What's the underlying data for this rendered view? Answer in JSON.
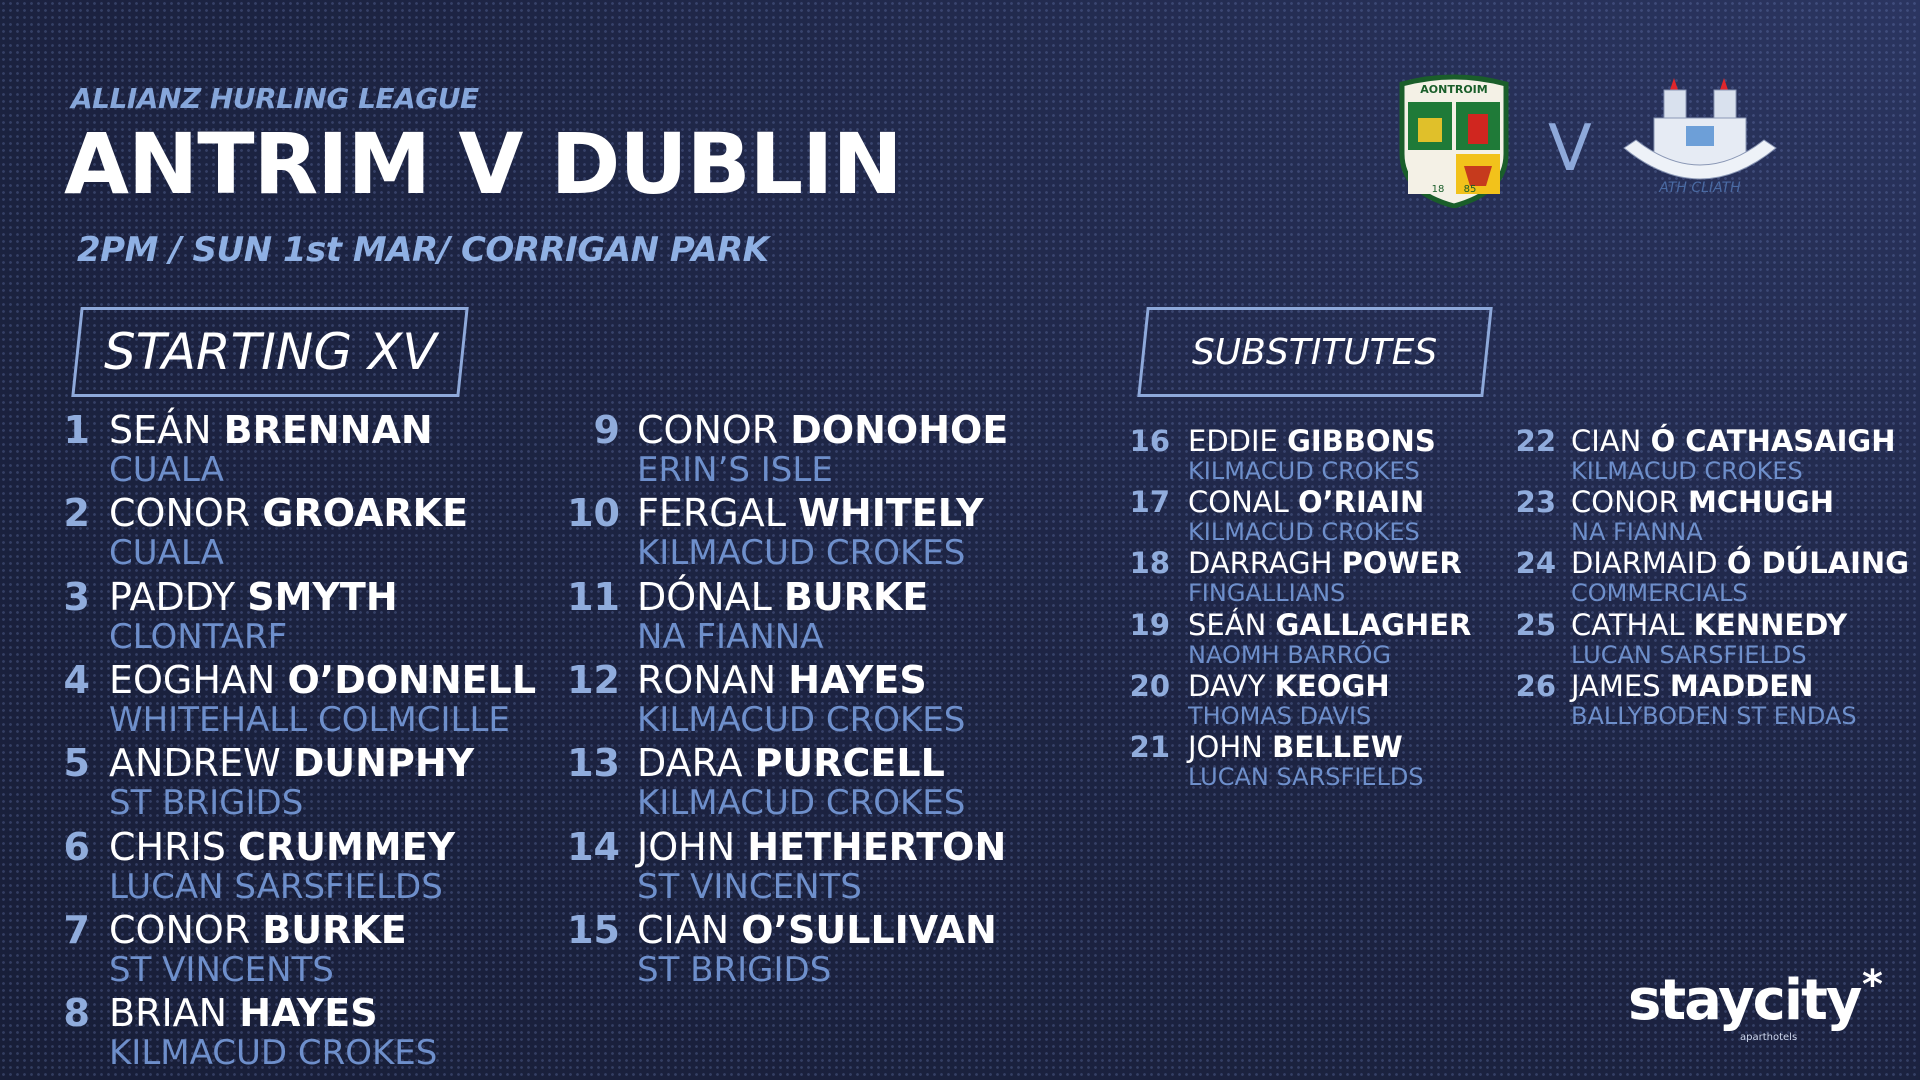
{
  "header": {
    "competition": "ALLIANZ HURLING LEAGUE",
    "title": "ANTRIM V DUBLIN",
    "details": "2PM / SUN 1st MAR/ CORRIGAN PARK"
  },
  "crests": {
    "home_label": "AONTROIM",
    "home_year_left": "18",
    "home_year_right": "85",
    "versus": "V",
    "away_label": "ATH CLIATH"
  },
  "starting": {
    "heading": "STARTING XV",
    "players": [
      {
        "number": 1,
        "first": "SEÁN",
        "last": "BRENNAN",
        "club": "CUALA"
      },
      {
        "number": 2,
        "first": "CONOR",
        "last": "GROARKE",
        "club": "CUALA"
      },
      {
        "number": 3,
        "first": "PADDY",
        "last": "SMYTH",
        "club": "CLONTARF"
      },
      {
        "number": 4,
        "first": "EOGHAN",
        "last": "O’DONNELL",
        "club": "WHITEHALL COLMCILLE"
      },
      {
        "number": 5,
        "first": "ANDREW",
        "last": "DUNPHY",
        "club": "ST BRIGIDS"
      },
      {
        "number": 6,
        "first": "CHRIS",
        "last": "CRUMMEY",
        "club": "LUCAN SARSFIELDS"
      },
      {
        "number": 7,
        "first": "CONOR",
        "last": "BURKE",
        "club": "ST VINCENTS"
      },
      {
        "number": 8,
        "first": "BRIAN",
        "last": "HAYES",
        "club": "KILMACUD CROKES"
      },
      {
        "number": 9,
        "first": "CONOR",
        "last": "DONOHOE",
        "club": "ERIN’S ISLE"
      },
      {
        "number": 10,
        "first": "FERGAL",
        "last": "WHITELY",
        "club": "KILMACUD CROKES"
      },
      {
        "number": 11,
        "first": "DÓNAL",
        "last": "BURKE",
        "club": "NA FIANNA"
      },
      {
        "number": 12,
        "first": "RONAN",
        "last": "HAYES",
        "club": "KILMACUD CROKES"
      },
      {
        "number": 13,
        "first": "DARA",
        "last": "PURCELL",
        "club": "KILMACUD CROKES"
      },
      {
        "number": 14,
        "first": "JOHN",
        "last": "HETHERTON",
        "club": "ST VINCENTS"
      },
      {
        "number": 15,
        "first": "CIAN",
        "last": "O’SULLIVAN",
        "club": "ST BRIGIDS"
      }
    ]
  },
  "substitutes": {
    "heading": "SUBSTITUTES",
    "players": [
      {
        "number": 16,
        "first": "EDDIE",
        "last": "GIBBONS",
        "club": "KILMACUD CROKES"
      },
      {
        "number": 17,
        "first": "CONAL",
        "last": "O’RIAIN",
        "club": "KILMACUD CROKES"
      },
      {
        "number": 18,
        "first": "DARRAGH",
        "last": "POWER",
        "club": "FINGALLIANS"
      },
      {
        "number": 19,
        "first": "SEÁN",
        "last": "GALLAGHER",
        "club": "NAOMH BARRÓG"
      },
      {
        "number": 20,
        "first": "DAVY",
        "last": "KEOGH",
        "club": "THOMAS DAVIS"
      },
      {
        "number": 21,
        "first": "JOHN",
        "last": "BELLEW",
        "club": "LUCAN SARSFIELDS"
      },
      {
        "number": 22,
        "first": "CIAN",
        "last": "Ó CATHASAIGH",
        "club": "KILMACUD CROKES"
      },
      {
        "number": 23,
        "first": "CONOR",
        "last": "MCHUGH",
        "club": "NA FIANNA"
      },
      {
        "number": 24,
        "first": "DIARMAID",
        "last": "Ó DÚLAING",
        "club": "COMMERCIALS"
      },
      {
        "number": 25,
        "first": "CATHAL",
        "last": "KENNEDY",
        "club": "LUCAN SARSFIELDS"
      },
      {
        "number": 26,
        "first": "JAMES",
        "last": "MADDEN",
        "club": "BALLYBODEN ST ENDAS"
      }
    ]
  },
  "sponsor": {
    "name": "staycity",
    "mark": "*",
    "tagline": "aparthotels"
  }
}
